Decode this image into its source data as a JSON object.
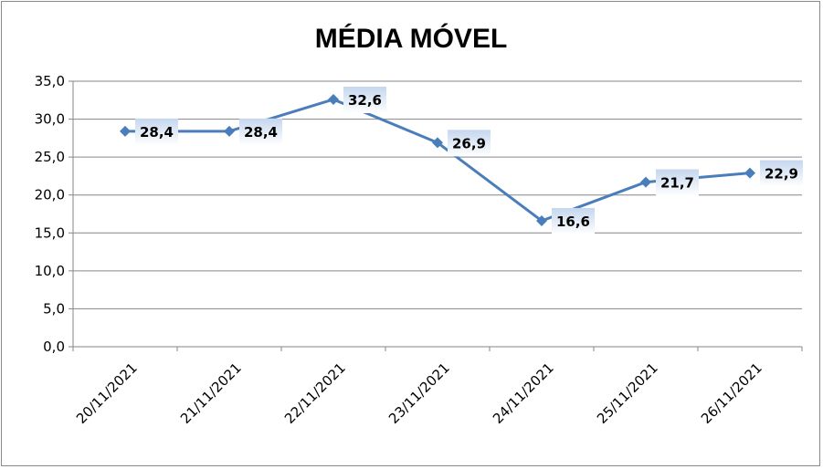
{
  "chart_data": {
    "type": "line",
    "title": "MÉDIA MÓVEL",
    "categories": [
      "20/11/2021",
      "21/11/2021",
      "22/11/2021",
      "23/11/2021",
      "24/11/2021",
      "25/11/2021",
      "26/11/2021"
    ],
    "series": [
      {
        "values": [
          28.4,
          28.4,
          32.6,
          26.9,
          16.6,
          21.7,
          22.9
        ],
        "labels": [
          "28,4",
          "28,4",
          "32,6",
          "26,9",
          "16,6",
          "21,7",
          "22,9"
        ],
        "color": "#4a7ebb",
        "marker": "diamond"
      }
    ],
    "yticks": [
      "0,0",
      "5,0",
      "10,0",
      "15,0",
      "20,0",
      "25,0",
      "30,0",
      "35,0"
    ],
    "ylim": [
      0,
      35
    ],
    "grid": true,
    "legend": "none",
    "colors": {
      "line": "#4a7ebb",
      "gridline": "#868686",
      "label_box_top": "#c5d6ee",
      "label_box_bottom": "#ffffff"
    }
  }
}
